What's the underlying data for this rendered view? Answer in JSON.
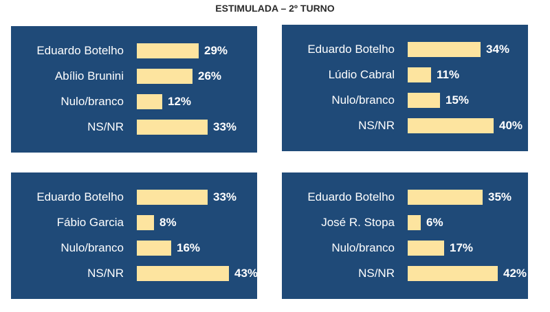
{
  "title": "ESTIMULADA – 2º TURNO",
  "colors": {
    "panel": "#1f4a78",
    "bar": "#fde49f",
    "text": "#ffffff"
  },
  "chart_data": [
    {
      "type": "bar",
      "categories": [
        "Eduardo Botelho",
        "Abílio Brunini",
        "Nulo/branco",
        "NS/NR"
      ],
      "values": [
        29,
        26,
        12,
        33
      ],
      "labels": [
        "29%",
        "26%",
        "12%",
        "33%"
      ]
    },
    {
      "type": "bar",
      "categories": [
        "Eduardo Botelho",
        "Lúdio Cabral",
        "Nulo/branco",
        "NS/NR"
      ],
      "values": [
        34,
        11,
        15,
        40
      ],
      "labels": [
        "34%",
        "11%",
        "15%",
        "40%"
      ]
    },
    {
      "type": "bar",
      "categories": [
        "Eduardo Botelho",
        "Fábio Garcia",
        "Nulo/branco",
        "NS/NR"
      ],
      "values": [
        33,
        8,
        16,
        43
      ],
      "labels": [
        "33%",
        "8%",
        "16%",
        "43%"
      ]
    },
    {
      "type": "bar",
      "categories": [
        "Eduardo Botelho",
        "José R. Stopa",
        "Nulo/branco",
        "NS/NR"
      ],
      "values": [
        35,
        6,
        17,
        42
      ],
      "labels": [
        "35%",
        "6%",
        "17%",
        "42%"
      ]
    }
  ]
}
